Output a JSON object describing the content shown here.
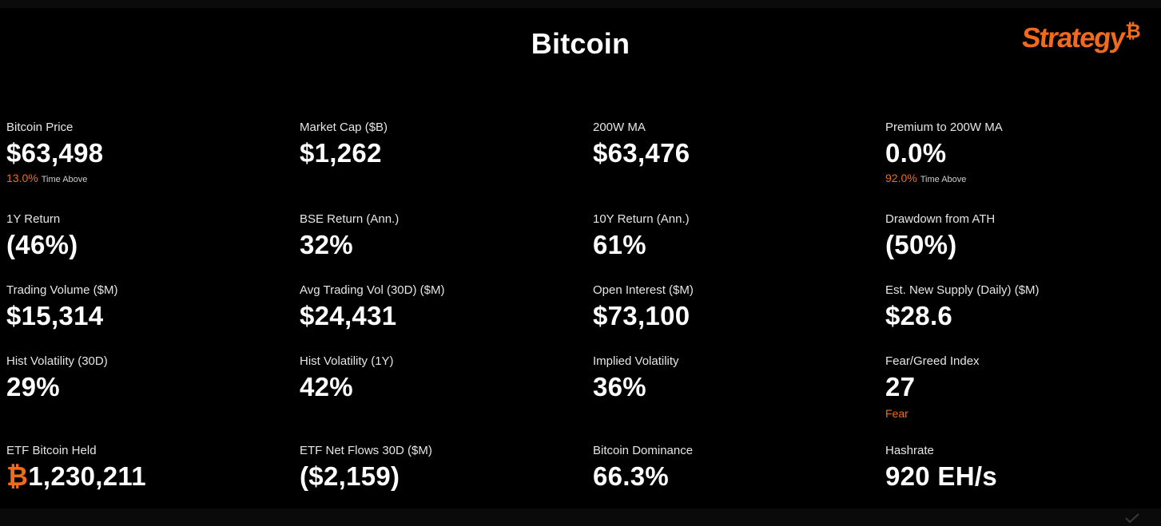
{
  "header": {
    "title": "Bitcoin",
    "logo_text": "Strategy",
    "logo_mark": "₿"
  },
  "colors": {
    "background": "#000000",
    "accent": "#f26b1d",
    "text": "#ffffff",
    "label": "#e6e6e6"
  },
  "metrics": {
    "bitcoin_price": {
      "label": "Bitcoin Price",
      "value": "$63,498",
      "sub_pct": "13.0%",
      "sub_text": "Time Above"
    },
    "market_cap": {
      "label": "Market Cap ($B)",
      "value": "$1,262"
    },
    "ma_200w": {
      "label": "200W MA",
      "value": "$63,476"
    },
    "premium_200w": {
      "label": "Premium to 200W MA",
      "value": "0.0%",
      "sub_pct": "92.0%",
      "sub_text": "Time Above"
    },
    "return_1y": {
      "label": "1Y Return",
      "value": "(46%)"
    },
    "bse_return": {
      "label": "BSE Return (Ann.)",
      "value": "32%"
    },
    "return_10y": {
      "label": "10Y Return (Ann.)",
      "value": "61%"
    },
    "drawdown": {
      "label": "Drawdown from ATH",
      "value": "(50%)"
    },
    "trading_volume": {
      "label": "Trading Volume ($M)",
      "value": "$15,314"
    },
    "avg_trading_vol": {
      "label": "Avg Trading Vol (30D) ($M)",
      "value": "$24,431"
    },
    "open_interest": {
      "label": "Open Interest ($M)",
      "value": "$73,100"
    },
    "new_supply": {
      "label": "Est. New Supply (Daily) ($M)",
      "value": "$28.6"
    },
    "hist_vol_30d": {
      "label": "Hist Volatility (30D)",
      "value": "29%"
    },
    "hist_vol_1y": {
      "label": "Hist Volatility (1Y)",
      "value": "42%"
    },
    "implied_vol": {
      "label": "Implied Volatility",
      "value": "36%"
    },
    "fear_greed": {
      "label": "Fear/Greed Index",
      "value": "27",
      "sub_text": "Fear"
    },
    "etf_held": {
      "label": "ETF Bitcoin Held",
      "value_symbol": "₿",
      "value": "1,230,211"
    },
    "etf_flows": {
      "label": "ETF Net Flows 30D ($M)",
      "value": "($2,159)"
    },
    "dominance": {
      "label": "Bitcoin Dominance",
      "value": "66.3%"
    },
    "hashrate": {
      "label": "Hashrate",
      "value": "920 EH/s"
    }
  }
}
